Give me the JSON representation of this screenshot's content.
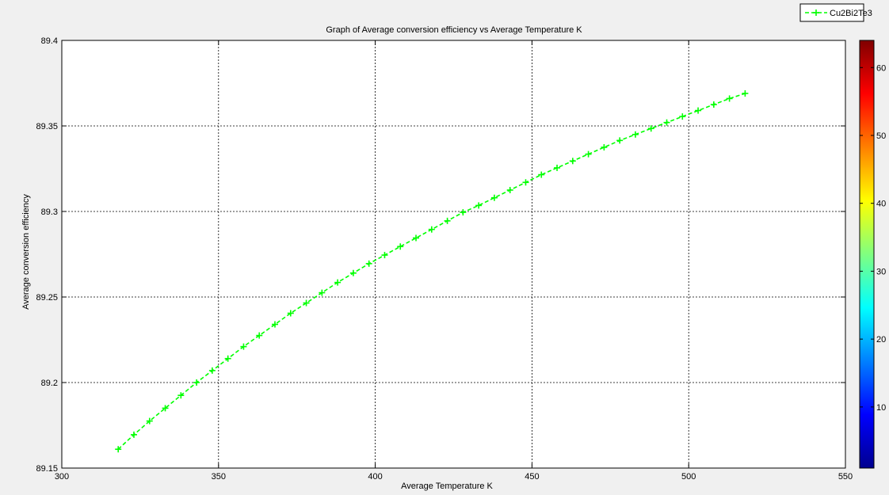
{
  "chart_data": {
    "type": "line",
    "title": "Graph of Average conversion efficiency vs Average Temperature K",
    "xlabel": "Average Temperature K",
    "ylabel": "Average conversion efficiency",
    "xlim": [
      300,
      550
    ],
    "ylim": [
      89.15,
      89.4
    ],
    "xticks": [
      "300",
      "350",
      "400",
      "450",
      "500",
      "550"
    ],
    "yticks": [
      "89.15",
      "89.2",
      "89.25",
      "89.3",
      "89.35",
      "89.4"
    ],
    "grid": true,
    "legend_position": "top-right",
    "series": [
      {
        "name": "Cu2Bi2Te3",
        "color": "#00ff00",
        "line_style": "dashed",
        "marker": "plus",
        "x": [
          318,
          323,
          328,
          333,
          338,
          343,
          348,
          353,
          358,
          363,
          368,
          373,
          378,
          383,
          388,
          393,
          398,
          403,
          408,
          413,
          418,
          423,
          428,
          433,
          438,
          443,
          448,
          453,
          458,
          463,
          468,
          473,
          478,
          483,
          488,
          493,
          498,
          503,
          508,
          513,
          518
        ],
        "y": [
          89.161,
          89.1695,
          89.1775,
          89.185,
          89.1925,
          89.2,
          89.207,
          89.214,
          89.221,
          89.2275,
          89.234,
          89.2405,
          89.2465,
          89.2525,
          89.2585,
          89.264,
          89.2695,
          89.2745,
          89.2795,
          89.2845,
          89.2895,
          89.2945,
          89.2995,
          89.3035,
          89.308,
          89.3125,
          89.317,
          89.3215,
          89.3255,
          89.3295,
          89.3335,
          89.3375,
          89.3415,
          89.345,
          89.3485,
          89.352,
          89.3555,
          89.359,
          89.3625,
          89.366,
          89.369
        ]
      }
    ],
    "colorbar": {
      "colors": [
        "#00008f",
        "#0000ff",
        "#0080ff",
        "#00ffff",
        "#80ff80",
        "#ffff00",
        "#ff8000",
        "#ff0000",
        "#800000"
      ],
      "ticks": [
        "10",
        "20",
        "30",
        "40",
        "50",
        "60"
      ],
      "range": [
        1,
        64
      ]
    }
  }
}
